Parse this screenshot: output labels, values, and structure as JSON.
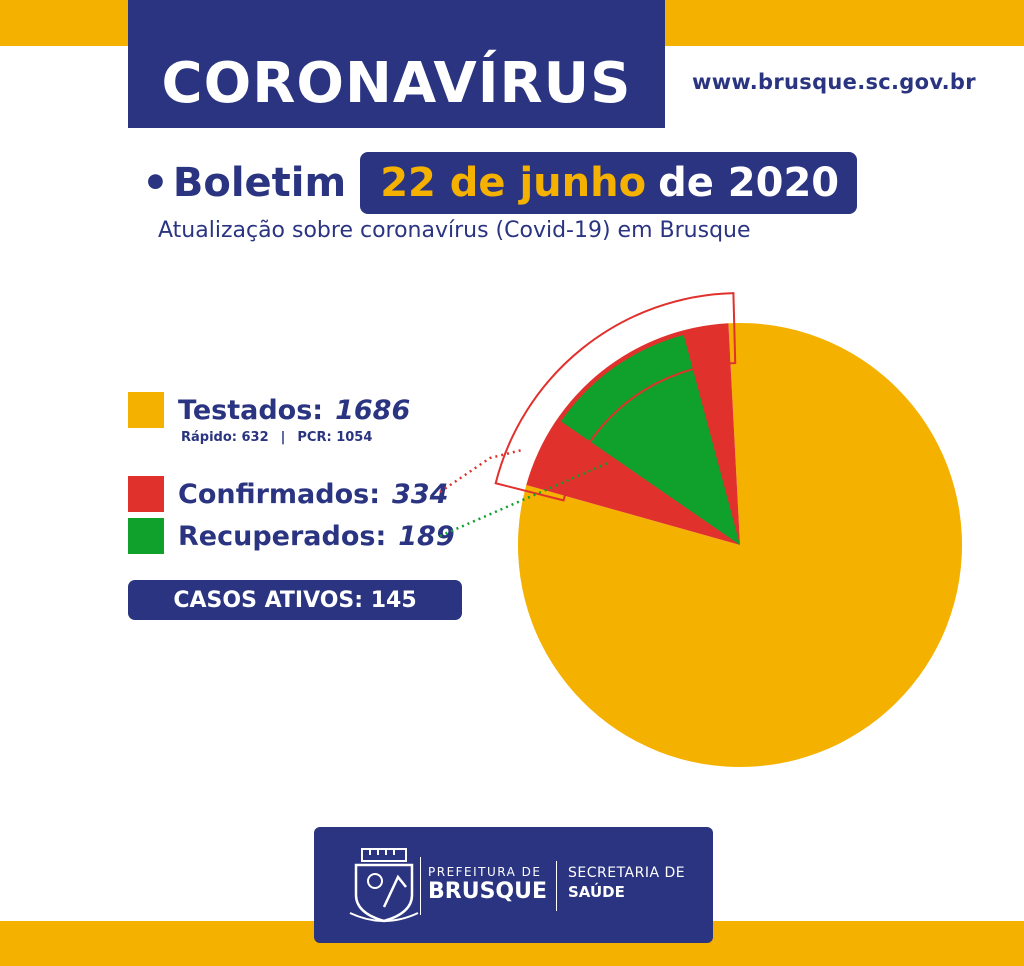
{
  "colors": {
    "navy": "#2a3480",
    "yellow": "#f5b100",
    "red": "#e0312d",
    "green": "#10a02c",
    "white": "#ffffff"
  },
  "header": {
    "title": "CORONAVÍRUS",
    "website": "www.brusque.sc.gov.br"
  },
  "bulletin": {
    "bullet": "•",
    "label": "Boletim",
    "date": "22 de junho",
    "year": "de 2020",
    "subtitle": "Atualização sobre coronavírus (Covid-19) em Brusque"
  },
  "legend": {
    "testados": {
      "label": "Testados:",
      "value": "1686",
      "sub_rapido": "Rápido: 632",
      "sub_sep": "|",
      "sub_pcr": "PCR: 1054"
    },
    "confirmados": {
      "label": "Confirmados:",
      "value": "334"
    },
    "recuperados": {
      "label": "Recuperados:",
      "value": "189"
    }
  },
  "active_cases": "CASOS ATIVOS: 145",
  "footer": {
    "prefeitura_small": "PREFEITURA DE",
    "prefeitura_big": "BRUSQUE",
    "secretaria_small": "SECRETARIA DE",
    "secretaria_big": "SAÚDE",
    "crest_icon": "city-crest-icon"
  },
  "chart_data": {
    "type": "pie",
    "title": "",
    "slices": [
      {
        "name": "Testados",
        "value": 1686,
        "color": "#f5b100"
      },
      {
        "name": "Confirmados",
        "value": 334,
        "color": "#e0312d"
      },
      {
        "name": "Recuperados",
        "value": 189,
        "color": "#10a02c"
      }
    ],
    "note": "Confirmados is shown as a portion of Testados; Recuperados is shown as a portion of Confirmados"
  }
}
